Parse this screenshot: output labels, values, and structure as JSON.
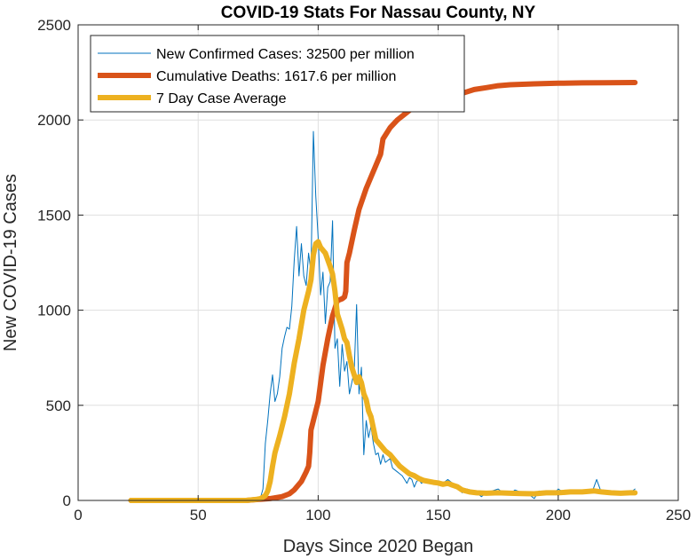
{
  "chart_data": {
    "type": "line",
    "title": "COVID-19 Stats For Nassau County, NY",
    "xlabel": "Days Since 2020 Began",
    "ylabel": "New COVID-19 Cases",
    "xlim": [
      0,
      250
    ],
    "ylim": [
      0,
      2500
    ],
    "xticks": [
      0,
      50,
      100,
      150,
      200,
      250
    ],
    "yticks": [
      0,
      500,
      1000,
      1500,
      2000,
      2500
    ],
    "xtick_labels": [
      "0",
      "50",
      "100",
      "150",
      "200",
      "250"
    ],
    "ytick_labels": [
      "0",
      "500",
      "1000",
      "1500",
      "2000",
      "2500"
    ],
    "grid": true,
    "legend_position": "top-left",
    "series": [
      {
        "name": "New Confirmed Cases: 32500 per million",
        "color": "#0072BD",
        "width": "thin",
        "points": [
          [
            22,
            0
          ],
          [
            70,
            0
          ],
          [
            74,
            5
          ],
          [
            76,
            15
          ],
          [
            77,
            60
          ],
          [
            78,
            300
          ],
          [
            79,
            420
          ],
          [
            80,
            560
          ],
          [
            81,
            660
          ],
          [
            82,
            520
          ],
          [
            83,
            560
          ],
          [
            84,
            650
          ],
          [
            85,
            800
          ],
          [
            86,
            860
          ],
          [
            87,
            910
          ],
          [
            88,
            900
          ],
          [
            89,
            1020
          ],
          [
            90,
            1260
          ],
          [
            91,
            1440
          ],
          [
            92,
            1180
          ],
          [
            93,
            1350
          ],
          [
            94,
            1180
          ],
          [
            95,
            1130
          ],
          [
            96,
            1300
          ],
          [
            97,
            1200
          ],
          [
            98,
            1940
          ],
          [
            99,
            1600
          ],
          [
            100,
            1380
          ],
          [
            101,
            1080
          ],
          [
            102,
            1200
          ],
          [
            103,
            930
          ],
          [
            104,
            1120
          ],
          [
            105,
            1150
          ],
          [
            106,
            1470
          ],
          [
            107,
            800
          ],
          [
            108,
            850
          ],
          [
            109,
            600
          ],
          [
            110,
            820
          ],
          [
            111,
            680
          ],
          [
            112,
            730
          ],
          [
            113,
            560
          ],
          [
            114,
            620
          ],
          [
            115,
            680
          ],
          [
            116,
            1030
          ],
          [
            117,
            560
          ],
          [
            118,
            700
          ],
          [
            119,
            240
          ],
          [
            120,
            420
          ],
          [
            121,
            330
          ],
          [
            122,
            390
          ],
          [
            123,
            300
          ],
          [
            124,
            240
          ],
          [
            125,
            250
          ],
          [
            126,
            190
          ],
          [
            127,
            240
          ],
          [
            128,
            200
          ],
          [
            129,
            210
          ],
          [
            130,
            220
          ],
          [
            131,
            170
          ],
          [
            132,
            160
          ],
          [
            133,
            150
          ],
          [
            134,
            140
          ],
          [
            135,
            130
          ],
          [
            136,
            110
          ],
          [
            137,
            90
          ],
          [
            138,
            120
          ],
          [
            139,
            110
          ],
          [
            140,
            70
          ],
          [
            141,
            100
          ],
          [
            142,
            110
          ],
          [
            143,
            90
          ],
          [
            144,
            100
          ],
          [
            145,
            95
          ],
          [
            146,
            100
          ],
          [
            147,
            90
          ],
          [
            148,
            85
          ],
          [
            150,
            85
          ],
          [
            152,
            90
          ],
          [
            154,
            110
          ],
          [
            156,
            90
          ],
          [
            158,
            80
          ],
          [
            160,
            40
          ],
          [
            162,
            60
          ],
          [
            165,
            50
          ],
          [
            168,
            20
          ],
          [
            170,
            40
          ],
          [
            175,
            60
          ],
          [
            178,
            30
          ],
          [
            180,
            35
          ],
          [
            182,
            55
          ],
          [
            185,
            40
          ],
          [
            188,
            30
          ],
          [
            190,
            10
          ],
          [
            192,
            50
          ],
          [
            195,
            40
          ],
          [
            198,
            30
          ],
          [
            200,
            60
          ],
          [
            203,
            35
          ],
          [
            206,
            50
          ],
          [
            210,
            40
          ],
          [
            214,
            40
          ],
          [
            216,
            110
          ],
          [
            218,
            40
          ],
          [
            222,
            40
          ],
          [
            226,
            30
          ],
          [
            230,
            40
          ],
          [
            232,
            60
          ]
        ]
      },
      {
        "name": "Cumulative Deaths: 1617.6 per million",
        "color": "#D95319",
        "width": "thick",
        "points": [
          [
            22,
            0
          ],
          [
            70,
            0
          ],
          [
            75,
            5
          ],
          [
            80,
            10
          ],
          [
            85,
            20
          ],
          [
            88,
            35
          ],
          [
            90,
            55
          ],
          [
            93,
            100
          ],
          [
            95,
            150
          ],
          [
            96,
            180
          ],
          [
            96.5,
            250
          ],
          [
            97,
            370
          ],
          [
            98,
            420
          ],
          [
            100,
            520
          ],
          [
            102,
            710
          ],
          [
            104,
            850
          ],
          [
            106,
            970
          ],
          [
            107,
            1010
          ],
          [
            108,
            1050
          ],
          [
            110,
            1060
          ],
          [
            111,
            1070
          ],
          [
            111.5,
            1100
          ],
          [
            112,
            1250
          ],
          [
            113,
            1300
          ],
          [
            115,
            1420
          ],
          [
            117,
            1530
          ],
          [
            120,
            1640
          ],
          [
            122,
            1700
          ],
          [
            124,
            1760
          ],
          [
            126,
            1820
          ],
          [
            127,
            1900
          ],
          [
            128,
            1920
          ],
          [
            130,
            1960
          ],
          [
            133,
            2000
          ],
          [
            137,
            2040
          ],
          [
            140,
            2070
          ],
          [
            145,
            2095
          ],
          [
            150,
            2110
          ],
          [
            155,
            2120
          ],
          [
            160,
            2140
          ],
          [
            165,
            2160
          ],
          [
            170,
            2170
          ],
          [
            175,
            2180
          ],
          [
            180,
            2185
          ],
          [
            190,
            2190
          ],
          [
            200,
            2193
          ],
          [
            210,
            2195
          ],
          [
            220,
            2196
          ],
          [
            232,
            2197
          ]
        ]
      },
      {
        "name": "7 Day Case Average",
        "color": "#EDB120",
        "width": "thick",
        "points": [
          [
            22,
            0
          ],
          [
            70,
            0
          ],
          [
            74,
            5
          ],
          [
            76,
            10
          ],
          [
            78,
            25
          ],
          [
            79,
            50
          ],
          [
            80,
            100
          ],
          [
            81,
            180
          ],
          [
            82,
            250
          ],
          [
            84,
            340
          ],
          [
            86,
            440
          ],
          [
            88,
            560
          ],
          [
            90,
            720
          ],
          [
            92,
            850
          ],
          [
            94,
            1000
          ],
          [
            96,
            1100
          ],
          [
            97,
            1160
          ],
          [
            98,
            1290
          ],
          [
            99,
            1350
          ],
          [
            100,
            1360
          ],
          [
            101,
            1330
          ],
          [
            103,
            1300
          ],
          [
            105,
            1230
          ],
          [
            106,
            1190
          ],
          [
            107,
            1100
          ],
          [
            108,
            980
          ],
          [
            110,
            900
          ],
          [
            111,
            850
          ],
          [
            112,
            830
          ],
          [
            113,
            760
          ],
          [
            114,
            700
          ],
          [
            115,
            660
          ],
          [
            116,
            620
          ],
          [
            117,
            650
          ],
          [
            118,
            620
          ],
          [
            119,
            560
          ],
          [
            120,
            530
          ],
          [
            121,
            470
          ],
          [
            122,
            440
          ],
          [
            123,
            380
          ],
          [
            124,
            320
          ],
          [
            126,
            290
          ],
          [
            128,
            260
          ],
          [
            130,
            240
          ],
          [
            132,
            210
          ],
          [
            134,
            180
          ],
          [
            136,
            160
          ],
          [
            138,
            140
          ],
          [
            140,
            130
          ],
          [
            142,
            115
          ],
          [
            144,
            105
          ],
          [
            146,
            100
          ],
          [
            148,
            95
          ],
          [
            150,
            92
          ],
          [
            152,
            85
          ],
          [
            154,
            90
          ],
          [
            156,
            80
          ],
          [
            158,
            72
          ],
          [
            160,
            55
          ],
          [
            163,
            45
          ],
          [
            166,
            40
          ],
          [
            170,
            38
          ],
          [
            175,
            40
          ],
          [
            180,
            38
          ],
          [
            185,
            36
          ],
          [
            190,
            35
          ],
          [
            195,
            40
          ],
          [
            200,
            40
          ],
          [
            205,
            45
          ],
          [
            210,
            45
          ],
          [
            215,
            50
          ],
          [
            218,
            45
          ],
          [
            222,
            40
          ],
          [
            226,
            38
          ],
          [
            230,
            40
          ],
          [
            232,
            40
          ]
        ]
      }
    ]
  }
}
